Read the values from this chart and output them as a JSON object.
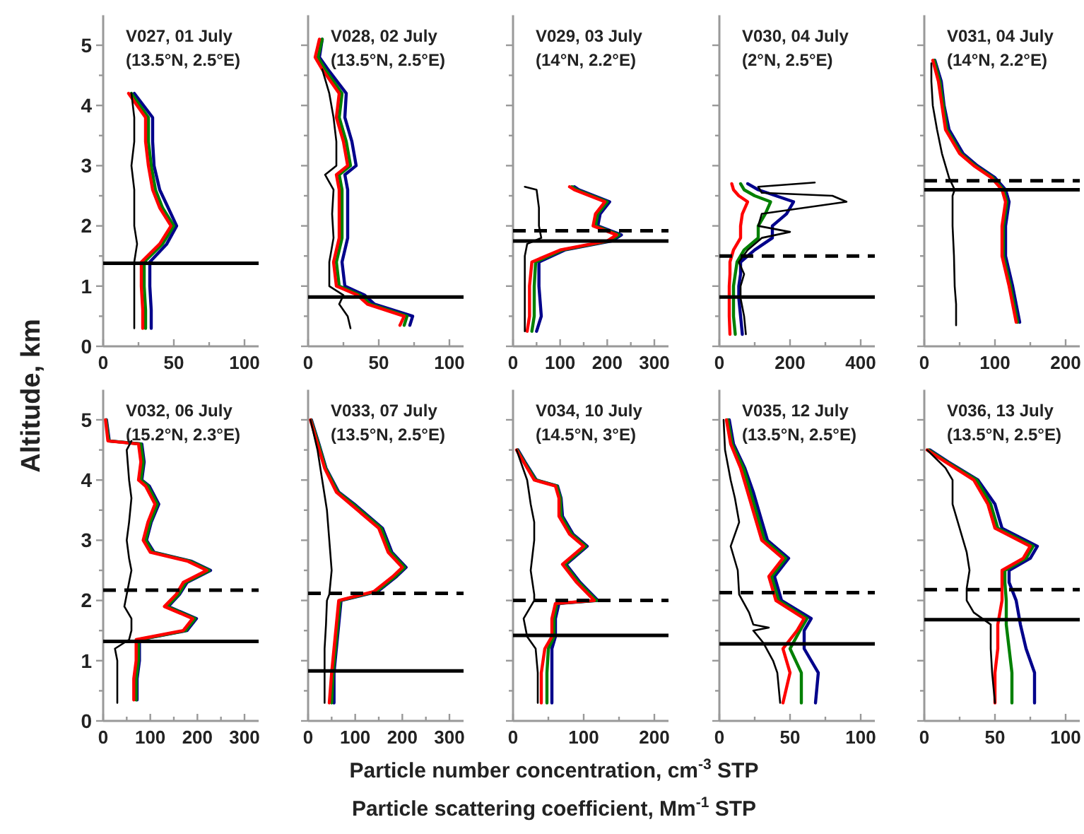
{
  "chart_data": [
    {
      "type": "line",
      "title": "V027, 01 July",
      "subtitle": "(13.5°N, 2.5°E)",
      "ylabel": "Altitude, km",
      "xlim": [
        0,
        110
      ],
      "xticks": [
        0,
        {
          "value": 25,
          "label": null
        },
        50,
        {
          "value": 75,
          "label": null
        },
        100
      ],
      "ylim": [
        0,
        5.5
      ],
      "yticks": [
        0,
        {
          "value": 0.5,
          "label": null
        },
        1,
        {
          "value": 1.5,
          "label": null
        },
        2,
        {
          "value": 2.5,
          "label": null
        },
        3,
        {
          "value": 3.5,
          "label": null
        },
        4,
        {
          "value": 4.5,
          "label": null
        },
        5
      ],
      "ref_lines": [
        {
          "axis": "y",
          "value": 1.38,
          "color": "#000000",
          "line_style": "solid"
        }
      ],
      "series": [
        {
          "color": "#00008b",
          "x": [
            34,
            34,
            33,
            33,
            45,
            52,
            46,
            40,
            36,
            35,
            35,
            22
          ],
          "values": [
            0.3,
            0.6,
            1.0,
            1.4,
            1.7,
            2.0,
            2.3,
            2.6,
            3.0,
            3.4,
            3.8,
            4.2
          ]
        },
        {
          "color": "#008000",
          "x": [
            30,
            30,
            29,
            29,
            42,
            50,
            42,
            37,
            34,
            32,
            32,
            20
          ],
          "values": [
            0.3,
            0.6,
            1.0,
            1.4,
            1.7,
            2.0,
            2.3,
            2.6,
            3.0,
            3.4,
            3.8,
            4.2
          ]
        },
        {
          "color": "#ff0000",
          "x": [
            28,
            28,
            27,
            27,
            40,
            48,
            40,
            35,
            32,
            30,
            30,
            18
          ],
          "values": [
            0.3,
            0.6,
            1.0,
            1.4,
            1.7,
            2.0,
            2.3,
            2.6,
            3.0,
            3.4,
            3.8,
            4.2
          ]
        },
        {
          "color": "#000000",
          "x": [
            22,
            22,
            22,
            22,
            24,
            22,
            22,
            22,
            20,
            22,
            22,
            20
          ],
          "values": [
            0.3,
            0.6,
            1.0,
            1.4,
            1.7,
            2.0,
            2.3,
            2.6,
            3.0,
            3.4,
            3.8,
            4.2
          ]
        }
      ]
    },
    {
      "type": "line",
      "title": "V028, 02 July",
      "subtitle": "(13.5°N, 2.5°E)",
      "tick_labels": "x",
      "xlim": [
        0,
        110
      ],
      "xticks": [
        0,
        {
          "value": 25,
          "label": null
        },
        50,
        {
          "value": 75,
          "label": null
        },
        100
      ],
      "ylim": [
        0,
        5.5
      ],
      "yticks": [
        0,
        {
          "value": 0.5,
          "label": null
        },
        1,
        {
          "value": 1.5,
          "label": null
        },
        2,
        {
          "value": 2.5,
          "label": null
        },
        3,
        {
          "value": 3.5,
          "label": null
        },
        4,
        {
          "value": 4.5,
          "label": null
        },
        5
      ],
      "ref_lines": [
        {
          "axis": "y",
          "value": 0.82,
          "color": "#000000",
          "line_style": "solid"
        }
      ],
      "series": [
        {
          "color": "#00008b",
          "x": [
            72,
            74,
            47,
            40,
            26,
            24,
            28,
            28,
            28,
            26,
            34,
            31,
            26,
            27,
            14,
            8,
            10
          ],
          "values": [
            0.35,
            0.5,
            0.7,
            0.85,
            1.0,
            1.4,
            1.8,
            2.2,
            2.6,
            2.85,
            3.0,
            3.4,
            3.8,
            4.2,
            4.6,
            4.8,
            5.1
          ]
        },
        {
          "color": "#008000",
          "x": [
            68,
            70,
            44,
            37,
            22,
            20,
            24,
            24,
            24,
            22,
            30,
            27,
            22,
            24,
            12,
            7,
            10
          ],
          "values": [
            0.35,
            0.5,
            0.7,
            0.85,
            1.0,
            1.4,
            1.8,
            2.2,
            2.6,
            2.85,
            3.0,
            3.4,
            3.8,
            4.2,
            4.6,
            4.8,
            5.1
          ]
        },
        {
          "color": "#ff0000",
          "x": [
            65,
            68,
            42,
            35,
            20,
            18,
            22,
            22,
            22,
            20,
            28,
            25,
            20,
            22,
            10,
            5,
            8
          ],
          "values": [
            0.35,
            0.5,
            0.7,
            0.85,
            1.0,
            1.4,
            1.8,
            2.2,
            2.6,
            2.85,
            3.0,
            3.4,
            3.8,
            4.2,
            4.6,
            4.8,
            5.1
          ]
        },
        {
          "color": "#000000",
          "x": [
            30,
            28,
            22,
            25,
            15,
            15,
            18,
            17,
            18,
            12,
            20,
            20,
            18,
            15,
            10
          ],
          "values": [
            0.3,
            0.5,
            0.7,
            0.85,
            1.0,
            1.4,
            1.8,
            2.2,
            2.6,
            2.85,
            3.0,
            3.4,
            3.8,
            4.2,
            4.6
          ]
        }
      ]
    },
    {
      "type": "line",
      "title": "V029, 03 July",
      "subtitle": "(14°N, 2.2°E)",
      "tick_labels": "x",
      "xlim": [
        0,
        330
      ],
      "xticks": [
        0,
        {
          "value": 50,
          "label": null
        },
        100,
        {
          "value": 150,
          "label": null
        },
        200,
        {
          "value": 250,
          "label": null
        },
        300
      ],
      "ylim": [
        0,
        5.5
      ],
      "yticks": [
        0,
        {
          "value": 0.5,
          "label": null
        },
        1,
        {
          "value": 1.5,
          "label": null
        },
        2,
        {
          "value": 2.5,
          "label": null
        },
        3,
        {
          "value": 3.5,
          "label": null
        },
        4,
        {
          "value": 4.5,
          "label": null
        },
        5
      ],
      "ref_lines": [
        {
          "axis": "y",
          "value": 1.92,
          "color": "#000000",
          "line_style": "dashed"
        },
        {
          "axis": "y",
          "value": 1.75,
          "color": "#000000",
          "line_style": "solid"
        }
      ],
      "series": [
        {
          "color": "#00008b",
          "x": [
            50,
            60,
            55,
            55,
            110,
            210,
            230,
            180,
            185,
            205,
            140,
            130
          ],
          "values": [
            0.25,
            0.5,
            1.0,
            1.4,
            1.6,
            1.75,
            1.85,
            2.0,
            2.2,
            2.4,
            2.6,
            2.65
          ]
        },
        {
          "color": "#008000",
          "x": [
            40,
            45,
            45,
            48,
            105,
            205,
            225,
            175,
            180,
            200,
            135,
            125
          ],
          "values": [
            0.25,
            0.5,
            1.0,
            1.4,
            1.6,
            1.75,
            1.85,
            2.0,
            2.2,
            2.4,
            2.6,
            2.65
          ]
        },
        {
          "color": "#ff0000",
          "x": [
            30,
            35,
            35,
            40,
            100,
            200,
            220,
            170,
            175,
            195,
            130,
            120
          ],
          "values": [
            0.25,
            0.5,
            1.0,
            1.4,
            1.6,
            1.75,
            1.85,
            2.0,
            2.2,
            2.4,
            2.6,
            2.65
          ]
        },
        {
          "color": "#000000",
          "x": [
            25,
            25,
            25,
            25,
            30,
            60,
            55,
            55,
            50,
            25
          ],
          "values": [
            0.25,
            0.5,
            1.0,
            1.5,
            1.7,
            1.8,
            2.0,
            2.3,
            2.6,
            2.65
          ]
        }
      ]
    },
    {
      "type": "line",
      "title": "V030, 04 July",
      "subtitle": "(2°N, 2.5°E)",
      "tick_labels": "x",
      "xlim": [
        0,
        440
      ],
      "xticks": [
        0,
        {
          "value": 100,
          "label": null
        },
        200,
        {
          "value": 300,
          "label": null
        },
        400
      ],
      "ylim": [
        0,
        5.5
      ],
      "yticks": [
        0,
        {
          "value": 0.5,
          "label": null
        },
        1,
        {
          "value": 1.5,
          "label": null
        },
        2,
        {
          "value": 2.5,
          "label": null
        },
        3,
        {
          "value": 3.5,
          "label": null
        },
        4,
        {
          "value": 4.5,
          "label": null
        },
        5
      ],
      "ref_lines": [
        {
          "axis": "y",
          "value": 1.5,
          "color": "#000000",
          "line_style": "dashed"
        },
        {
          "axis": "y",
          "value": 0.82,
          "color": "#000000",
          "line_style": "solid"
        }
      ],
      "series": [
        {
          "color": "#00008b",
          "x": [
            65,
            60,
            55,
            55,
            60,
            60,
            100,
            150,
            150,
            190,
            210,
            160,
            110,
            80
          ],
          "values": [
            0.2,
            0.5,
            0.8,
            1.0,
            1.2,
            1.4,
            1.6,
            1.8,
            2.0,
            2.2,
            2.4,
            2.5,
            2.6,
            2.7
          ]
        },
        {
          "color": "#008000",
          "x": [
            45,
            40,
            40,
            40,
            45,
            50,
            70,
            110,
            110,
            130,
            145,
            100,
            70,
            60
          ],
          "values": [
            0.2,
            0.5,
            0.8,
            1.0,
            1.2,
            1.4,
            1.6,
            1.8,
            2.0,
            2.2,
            2.4,
            2.5,
            2.6,
            2.7
          ]
        },
        {
          "color": "#ff0000",
          "x": [
            30,
            28,
            28,
            28,
            30,
            30,
            40,
            60,
            60,
            65,
            80,
            55,
            40,
            35
          ],
          "values": [
            0.2,
            0.5,
            0.8,
            1.0,
            1.2,
            1.4,
            1.6,
            1.8,
            2.0,
            2.2,
            2.4,
            2.5,
            2.6,
            2.7
          ]
        },
        {
          "color": "#000000",
          "x": [
            75,
            70,
            60,
            60,
            70,
            55,
            80,
            120,
            200,
            110,
            120,
            360,
            320,
            120,
            110,
            270
          ],
          "values": [
            0.2,
            0.5,
            0.8,
            1.0,
            1.2,
            1.4,
            1.6,
            1.8,
            1.9,
            2.0,
            2.2,
            2.4,
            2.5,
            2.55,
            2.65,
            2.72
          ]
        }
      ]
    },
    {
      "type": "line",
      "title": "V031, 04 July",
      "subtitle": "(14°N, 2.2°E)",
      "tick_labels": "x",
      "xlim": [
        0,
        220
      ],
      "xticks": [
        0,
        {
          "value": 50,
          "label": null
        },
        100,
        {
          "value": 150,
          "label": null
        },
        200
      ],
      "ylim": [
        0,
        5.5
      ],
      "yticks": [
        0,
        {
          "value": 0.5,
          "label": null
        },
        1,
        {
          "value": 1.5,
          "label": null
        },
        2,
        {
          "value": 2.5,
          "label": null
        },
        3,
        {
          "value": 3.5,
          "label": null
        },
        4,
        {
          "value": 4.5,
          "label": null
        },
        5
      ],
      "ref_lines": [
        {
          "axis": "y",
          "value": 2.75,
          "color": "#000000",
          "line_style": "dashed"
        },
        {
          "axis": "y",
          "value": 2.6,
          "color": "#000000",
          "line_style": "solid"
        }
      ],
      "series": [
        {
          "color": "#00008b",
          "x": [
            135,
            130,
            125,
            115,
            115,
            120,
            115,
            100,
            75,
            55,
            35,
            28,
            24,
            15
          ],
          "values": [
            0.4,
            0.7,
            1.0,
            1.5,
            2.0,
            2.4,
            2.6,
            2.8,
            3.0,
            3.2,
            3.6,
            4.0,
            4.4,
            4.75
          ]
        },
        {
          "color": "#008000",
          "x": [
            132,
            127,
            122,
            112,
            112,
            117,
            112,
            97,
            72,
            52,
            32,
            27,
            22,
            14
          ],
          "values": [
            0.4,
            0.7,
            1.0,
            1.5,
            2.0,
            2.4,
            2.6,
            2.8,
            3.0,
            3.2,
            3.6,
            4.0,
            4.4,
            4.75
          ]
        },
        {
          "color": "#ff0000",
          "x": [
            130,
            125,
            120,
            110,
            110,
            115,
            110,
            95,
            70,
            50,
            30,
            25,
            20,
            12
          ],
          "values": [
            0.4,
            0.7,
            1.0,
            1.5,
            2.0,
            2.4,
            2.6,
            2.8,
            3.0,
            3.2,
            3.6,
            4.0,
            4.4,
            4.75
          ]
        },
        {
          "color": "#000000",
          "x": [
            45,
            45,
            43,
            42,
            40,
            40,
            43,
            35,
            25,
            18,
            12,
            10,
            10
          ],
          "values": [
            0.35,
            0.7,
            1.0,
            1.5,
            2.0,
            2.5,
            2.6,
            2.8,
            3.2,
            3.6,
            4.0,
            4.4,
            4.7
          ]
        }
      ]
    },
    {
      "type": "line",
      "title": "V032, 06 July",
      "subtitle": "(15.2°N, 2.3°E)",
      "xlim": [
        0,
        330
      ],
      "xticks": [
        0,
        {
          "value": 50,
          "label": null
        },
        100,
        {
          "value": 150,
          "label": null
        },
        200,
        {
          "value": 250,
          "label": null
        },
        300
      ],
      "ylim": [
        0,
        5.5
      ],
      "yticks": [
        0,
        {
          "value": 0.5,
          "label": null
        },
        1,
        {
          "value": 1.5,
          "label": null
        },
        2,
        {
          "value": 2.5,
          "label": null
        },
        3,
        {
          "value": 3.5,
          "label": null
        },
        4,
        {
          "value": 4.5,
          "label": null
        },
        5
      ],
      "ref_lines": [
        {
          "axis": "y",
          "value": 2.17,
          "color": "#000000",
          "line_style": "dashed"
        },
        {
          "axis": "y",
          "value": 1.32,
          "color": "#000000",
          "line_style": "solid"
        }
      ],
      "series": [
        {
          "color": "#00008b",
          "x": [
            72,
            72,
            77,
            77,
            77,
            178,
            198,
            138,
            162,
            178,
            228,
            188,
            108,
            92,
            102,
            118,
            98,
            82,
            87,
            82,
            13,
            7
          ],
          "values": [
            0.35,
            0.7,
            1.0,
            1.2,
            1.35,
            1.5,
            1.7,
            1.9,
            2.1,
            2.3,
            2.5,
            2.65,
            2.8,
            3.0,
            3.3,
            3.6,
            3.9,
            4.0,
            4.3,
            4.6,
            4.65,
            5.0
          ]
        },
        {
          "color": "#008000",
          "x": [
            70,
            70,
            75,
            75,
            75,
            175,
            195,
            135,
            160,
            175,
            225,
            185,
            105,
            90,
            100,
            115,
            95,
            80,
            85,
            80,
            12,
            6
          ],
          "values": [
            0.35,
            0.7,
            1.0,
            1.2,
            1.35,
            1.5,
            1.7,
            1.9,
            2.1,
            2.3,
            2.5,
            2.65,
            2.8,
            3.0,
            3.3,
            3.6,
            3.9,
            4.0,
            4.3,
            4.6,
            4.65,
            5.0
          ]
        },
        {
          "color": "#ff0000",
          "x": [
            65,
            65,
            70,
            70,
            70,
            170,
            190,
            130,
            155,
            170,
            220,
            180,
            100,
            85,
            95,
            110,
            90,
            75,
            80,
            75,
            10,
            5
          ],
          "values": [
            0.35,
            0.7,
            1.0,
            1.2,
            1.35,
            1.5,
            1.7,
            1.9,
            2.1,
            2.3,
            2.5,
            2.65,
            2.8,
            3.0,
            3.3,
            3.6,
            3.9,
            4.0,
            4.3,
            4.6,
            4.65,
            5.0
          ]
        },
        {
          "color": "#000000",
          "x": [
            30,
            30,
            30,
            25,
            55,
            60,
            60,
            45,
            50,
            55,
            60,
            55,
            50,
            55,
            60,
            55,
            50,
            60
          ],
          "values": [
            0.3,
            0.7,
            1.0,
            1.2,
            1.35,
            1.5,
            1.7,
            1.9,
            2.1,
            2.3,
            2.5,
            2.7,
            3.0,
            3.3,
            3.7,
            4.0,
            4.5,
            4.65
          ]
        }
      ]
    },
    {
      "type": "line",
      "title": "V033, 07 July",
      "subtitle": "(13.5°N, 2.5°E)",
      "tick_labels": "x",
      "xlim": [
        0,
        330
      ],
      "xticks": [
        0,
        {
          "value": 50,
          "label": null
        },
        100,
        {
          "value": 150,
          "label": null
        },
        200,
        {
          "value": 250,
          "label": null
        },
        300
      ],
      "ylim": [
        0,
        5.5
      ],
      "yticks": [
        0,
        {
          "value": 0.5,
          "label": null
        },
        1,
        {
          "value": 1.5,
          "label": null
        },
        2,
        {
          "value": 2.5,
          "label": null
        },
        3,
        {
          "value": 3.5,
          "label": null
        },
        4,
        {
          "value": 4.5,
          "label": null
        },
        5
      ],
      "ref_lines": [
        {
          "axis": "y",
          "value": 2.12,
          "color": "#000000",
          "line_style": "dashed"
        },
        {
          "axis": "y",
          "value": 0.83,
          "color": "#000000",
          "line_style": "solid"
        }
      ],
      "series": [
        {
          "color": "#00008b",
          "x": [
            55,
            55,
            60,
            65,
            70,
            148,
            188,
            208,
            178,
            158,
            98,
            65,
            38,
            23,
            7
          ],
          "values": [
            0.3,
            0.8,
            1.2,
            1.6,
            2.0,
            2.15,
            2.4,
            2.55,
            2.8,
            3.2,
            3.6,
            3.8,
            4.2,
            4.6,
            5.0
          ]
        },
        {
          "color": "#008000",
          "x": [
            50,
            53,
            58,
            63,
            68,
            145,
            185,
            205,
            175,
            155,
            95,
            63,
            37,
            22,
            6
          ],
          "values": [
            0.3,
            0.8,
            1.2,
            1.6,
            2.0,
            2.15,
            2.4,
            2.55,
            2.8,
            3.2,
            3.6,
            3.8,
            4.2,
            4.6,
            5.0
          ]
        },
        {
          "color": "#ff0000",
          "x": [
            45,
            50,
            55,
            60,
            65,
            140,
            180,
            200,
            170,
            150,
            90,
            60,
            35,
            20,
            5
          ],
          "values": [
            0.3,
            0.8,
            1.2,
            1.6,
            2.0,
            2.15,
            2.4,
            2.55,
            2.8,
            3.2,
            3.6,
            3.8,
            4.2,
            4.6,
            5.0
          ]
        },
        {
          "color": "#000000",
          "x": [
            35,
            35,
            35,
            38,
            40,
            45,
            50,
            45,
            40,
            30,
            20,
            5
          ],
          "values": [
            0.3,
            0.8,
            1.2,
            1.6,
            2.0,
            2.1,
            2.5,
            3.0,
            3.5,
            4.0,
            4.5,
            5.0
          ]
        }
      ]
    },
    {
      "type": "line",
      "title": "V034, 10 July",
      "subtitle": "(14.5°N, 3°E)",
      "tick_labels": "x",
      "xlabel": "Particle number concentration, cm$^{-3}$ STP",
      "annotations": [
        "Particle scattering coefficient, Mm$^{-1}$ STP"
      ],
      "xlim": [
        0,
        220
      ],
      "xticks": [
        0,
        {
          "value": 50,
          "label": null
        },
        100,
        {
          "value": 150,
          "label": null
        },
        200
      ],
      "ylim": [
        0,
        5.5
      ],
      "yticks": [
        0,
        {
          "value": 0.5,
          "label": null
        },
        1,
        {
          "value": 1.5,
          "label": null
        },
        2,
        {
          "value": 2.5,
          "label": null
        },
        3,
        {
          "value": 3.5,
          "label": null
        },
        4,
        {
          "value": 4.5,
          "label": null
        },
        5
      ],
      "ref_lines": [
        {
          "axis": "y",
          "value": 2.0,
          "color": "#000000",
          "line_style": "dashed"
        },
        {
          "axis": "y",
          "value": 1.42,
          "color": "#000000",
          "line_style": "solid"
        }
      ],
      "series": [
        {
          "color": "#00008b",
          "x": [
            55,
            55,
            55,
            60,
            60,
            65,
            120,
            95,
            75,
            105,
            85,
            70,
            68,
            63,
            33,
            17,
            7
          ],
          "values": [
            0.3,
            0.8,
            1.2,
            1.4,
            1.7,
            1.95,
            2.0,
            2.3,
            2.6,
            2.9,
            3.1,
            3.4,
            3.7,
            3.9,
            4.0,
            4.3,
            4.5
          ]
        },
        {
          "color": "#008000",
          "x": [
            48,
            48,
            50,
            58,
            58,
            62,
            118,
            93,
            73,
            103,
            83,
            68,
            67,
            62,
            32,
            16,
            6
          ],
          "values": [
            0.3,
            0.8,
            1.2,
            1.4,
            1.7,
            1.95,
            2.0,
            2.3,
            2.6,
            2.9,
            3.1,
            3.4,
            3.7,
            3.9,
            4.0,
            4.3,
            4.5
          ]
        },
        {
          "color": "#ff0000",
          "x": [
            40,
            40,
            45,
            55,
            55,
            60,
            115,
            90,
            70,
            100,
            80,
            65,
            65,
            60,
            30,
            15,
            5
          ],
          "values": [
            0.3,
            0.8,
            1.2,
            1.4,
            1.7,
            1.95,
            2.0,
            2.3,
            2.6,
            2.9,
            3.1,
            3.4,
            3.7,
            3.9,
            4.0,
            4.3,
            4.5
          ]
        },
        {
          "color": "#000000",
          "x": [
            35,
            35,
            32,
            20,
            15,
            30,
            30,
            25,
            30,
            30,
            25,
            20,
            5
          ],
          "values": [
            0.3,
            0.8,
            1.2,
            1.4,
            1.7,
            2.0,
            2.1,
            2.5,
            3.0,
            3.3,
            3.6,
            4.0,
            4.5
          ]
        }
      ]
    },
    {
      "type": "line",
      "title": "V035, 12 July",
      "subtitle": "(13.5°N, 2.5°E)",
      "tick_labels": "x",
      "xlim": [
        0,
        110
      ],
      "xticks": [
        0,
        {
          "value": 25,
          "label": null
        },
        50,
        {
          "value": 75,
          "label": null
        },
        100
      ],
      "ylim": [
        0,
        5.5
      ],
      "yticks": [
        0,
        {
          "value": 0.5,
          "label": null
        },
        1,
        {
          "value": 1.5,
          "label": null
        },
        2,
        {
          "value": 2.5,
          "label": null
        },
        3,
        {
          "value": 3.5,
          "label": null
        },
        4,
        {
          "value": 4.5,
          "label": null
        },
        5
      ],
      "ref_lines": [
        {
          "axis": "y",
          "value": 2.13,
          "color": "#000000",
          "line_style": "dashed"
        },
        {
          "axis": "y",
          "value": 1.28,
          "color": "#000000",
          "line_style": "solid"
        }
      ],
      "series": [
        {
          "color": "#00008b",
          "x": [
            68,
            70,
            60,
            60,
            65,
            44,
            39,
            49,
            34,
            29,
            24,
            18,
            10,
            7
          ],
          "values": [
            0.3,
            0.8,
            1.2,
            1.5,
            1.7,
            2.0,
            2.4,
            2.7,
            3.0,
            3.4,
            3.8,
            4.2,
            4.6,
            5.0
          ]
        },
        {
          "color": "#008000",
          "x": [
            58,
            58,
            50,
            57,
            62,
            42,
            37,
            47,
            32,
            27,
            22,
            17,
            9,
            6
          ],
          "values": [
            0.3,
            0.8,
            1.2,
            1.5,
            1.7,
            2.0,
            2.4,
            2.7,
            3.0,
            3.4,
            3.8,
            4.2,
            4.6,
            5.0
          ]
        },
        {
          "color": "#ff0000",
          "x": [
            45,
            50,
            45,
            55,
            60,
            40,
            35,
            45,
            30,
            25,
            20,
            15,
            8,
            5
          ],
          "values": [
            0.3,
            0.8,
            1.2,
            1.5,
            1.7,
            2.0,
            2.4,
            2.7,
            3.0,
            3.4,
            3.8,
            4.2,
            4.6,
            5.0
          ]
        },
        {
          "color": "#000000",
          "x": [
            43,
            41,
            38,
            31,
            24,
            35,
            24,
            21,
            14,
            13,
            8,
            14,
            11,
            8,
            4,
            3
          ],
          "values": [
            0.3,
            0.8,
            1.0,
            1.3,
            1.5,
            1.55,
            1.6,
            1.8,
            2.1,
            2.5,
            2.9,
            3.3,
            3.7,
            4.0,
            4.5,
            5.0
          ]
        }
      ]
    },
    {
      "type": "line",
      "title": "V036, 13 July",
      "subtitle": "(13.5°N, 2.5°E)",
      "tick_labels": "x",
      "xlim": [
        0,
        110
      ],
      "xticks": [
        0,
        {
          "value": 25,
          "label": null
        },
        50,
        {
          "value": 75,
          "label": null
        },
        100
      ],
      "ylim": [
        0,
        5.5
      ],
      "yticks": [
        0,
        {
          "value": 0.5,
          "label": null
        },
        1,
        {
          "value": 1.5,
          "label": null
        },
        2,
        {
          "value": 2.5,
          "label": null
        },
        3,
        {
          "value": 3.5,
          "label": null
        },
        4,
        {
          "value": 4.5,
          "label": null
        },
        5
      ],
      "ref_lines": [
        {
          "axis": "y",
          "value": 2.18,
          "color": "#000000",
          "line_style": "dashed"
        },
        {
          "axis": "y",
          "value": 1.68,
          "color": "#000000",
          "line_style": "solid"
        }
      ],
      "series": [
        {
          "color": "#00008b",
          "x": [
            78,
            78,
            72,
            68,
            65,
            60,
            60,
            75,
            80,
            55,
            50,
            38,
            17,
            4
          ],
          "values": [
            0.3,
            0.8,
            1.2,
            1.6,
            2.0,
            2.3,
            2.5,
            2.7,
            2.9,
            3.2,
            3.6,
            4.0,
            4.3,
            4.5
          ]
        },
        {
          "color": "#008000",
          "x": [
            62,
            62,
            60,
            58,
            58,
            57,
            57,
            72,
            77,
            52,
            47,
            37,
            16,
            3
          ],
          "values": [
            0.3,
            0.8,
            1.2,
            1.6,
            2.0,
            2.3,
            2.5,
            2.7,
            2.9,
            3.2,
            3.6,
            4.0,
            4.3,
            4.5
          ]
        },
        {
          "color": "#ff0000",
          "x": [
            50,
            50,
            52,
            52,
            55,
            55,
            55,
            70,
            75,
            50,
            45,
            35,
            15,
            2
          ],
          "values": [
            0.3,
            0.8,
            1.2,
            1.6,
            2.0,
            2.3,
            2.5,
            2.7,
            2.9,
            3.2,
            3.6,
            4.0,
            4.3,
            4.5
          ]
        },
        {
          "color": "#000000",
          "x": [
            50,
            48,
            47,
            47,
            35,
            30,
            30,
            32,
            30,
            25,
            20,
            20,
            15,
            2
          ],
          "values": [
            0.3,
            0.8,
            1.2,
            1.6,
            1.8,
            2.0,
            2.2,
            2.5,
            2.8,
            3.2,
            3.6,
            4.0,
            4.2,
            4.5
          ]
        }
      ]
    }
  ]
}
